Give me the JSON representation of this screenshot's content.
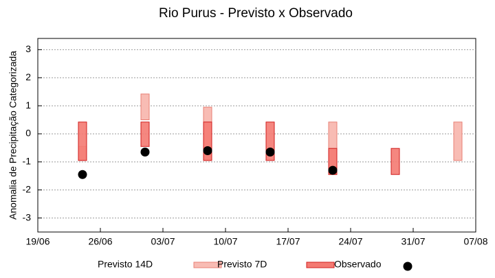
{
  "chart_data": {
    "type": "range",
    "title": "Rio Purus - Previsto x Observado",
    "y_label": "Anomalia de Precipitação Categorizada",
    "x": [
      "24/06",
      "01/07",
      "08/07",
      "15/07",
      "22/07",
      "29/07",
      "05/08"
    ],
    "xlim": [
      "19/06",
      "07/08"
    ],
    "xticks": [
      "19/06",
      "26/06",
      "03/07",
      "10/07",
      "17/07",
      "24/07",
      "31/07",
      "07/08"
    ],
    "ylim": [
      -3.5,
      3.4
    ],
    "yticks": [
      -3,
      -2,
      -1,
      0,
      1,
      2,
      3
    ],
    "grid": true,
    "legend": "bottom",
    "series": [
      {
        "name": "Previsto 14D",
        "color": "#f8bcb4",
        "stroke": "#e87f74",
        "low": [
          -0.95,
          0.5,
          -0.95,
          null,
          -1.45,
          null,
          -0.95
        ],
        "high": [
          -0.45,
          1.42,
          0.95,
          null,
          0.42,
          null,
          0.42
        ]
      },
      {
        "name": "Previsto 7D",
        "color": "#f47a72",
        "stroke": "#d01c1c",
        "low": [
          -0.95,
          -0.45,
          -0.95,
          -0.95,
          -1.45,
          -1.45,
          null
        ],
        "high": [
          0.42,
          0.42,
          0.42,
          0.42,
          -0.52,
          -0.52,
          null
        ]
      },
      {
        "name": "Observado",
        "color": "#000000",
        "values": [
          -1.45,
          -0.65,
          -0.6,
          -0.65,
          -1.3,
          null,
          null
        ]
      }
    ]
  }
}
